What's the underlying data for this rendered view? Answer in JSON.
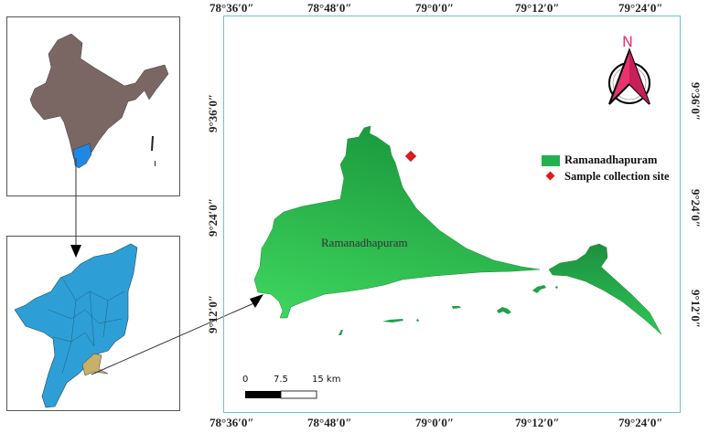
{
  "graticule": {
    "top": [
      "78°36′0″",
      "78°48′0″",
      "79°0′0″",
      "79°12′0″",
      "79°24′0″"
    ],
    "bottom": [
      "78°36′0″",
      "78°48′0″",
      "79°0′0″",
      "79°12′0″",
      "79°24′0″"
    ],
    "left": [
      "9°36′0″",
      "9°24′0″",
      "9°12′0″"
    ],
    "right": [
      "9°36′0″",
      "9°24′0″",
      "9°12′0″"
    ]
  },
  "map_label": "Ramanadhapuram",
  "north_arrow": {
    "label": "N",
    "color": "#e8336e"
  },
  "legend": [
    {
      "label": "Ramanadhapuram",
      "symbol": "green-rectangle",
      "color": "#22b14c"
    },
    {
      "label": "Sample collection site",
      "symbol": "red-diamond",
      "color": "#e31a1c"
    }
  ],
  "scale_bar": {
    "ticks": [
      "0",
      "7.5",
      "15 km"
    ]
  },
  "colors": {
    "india": "#7a6763",
    "tamil_nadu_india": "#1e88e5",
    "tamil_nadu": "#2e9fd6",
    "district_highlight": "#c8b06a",
    "district": "#22b14c",
    "frame": "#6cc3d5"
  }
}
